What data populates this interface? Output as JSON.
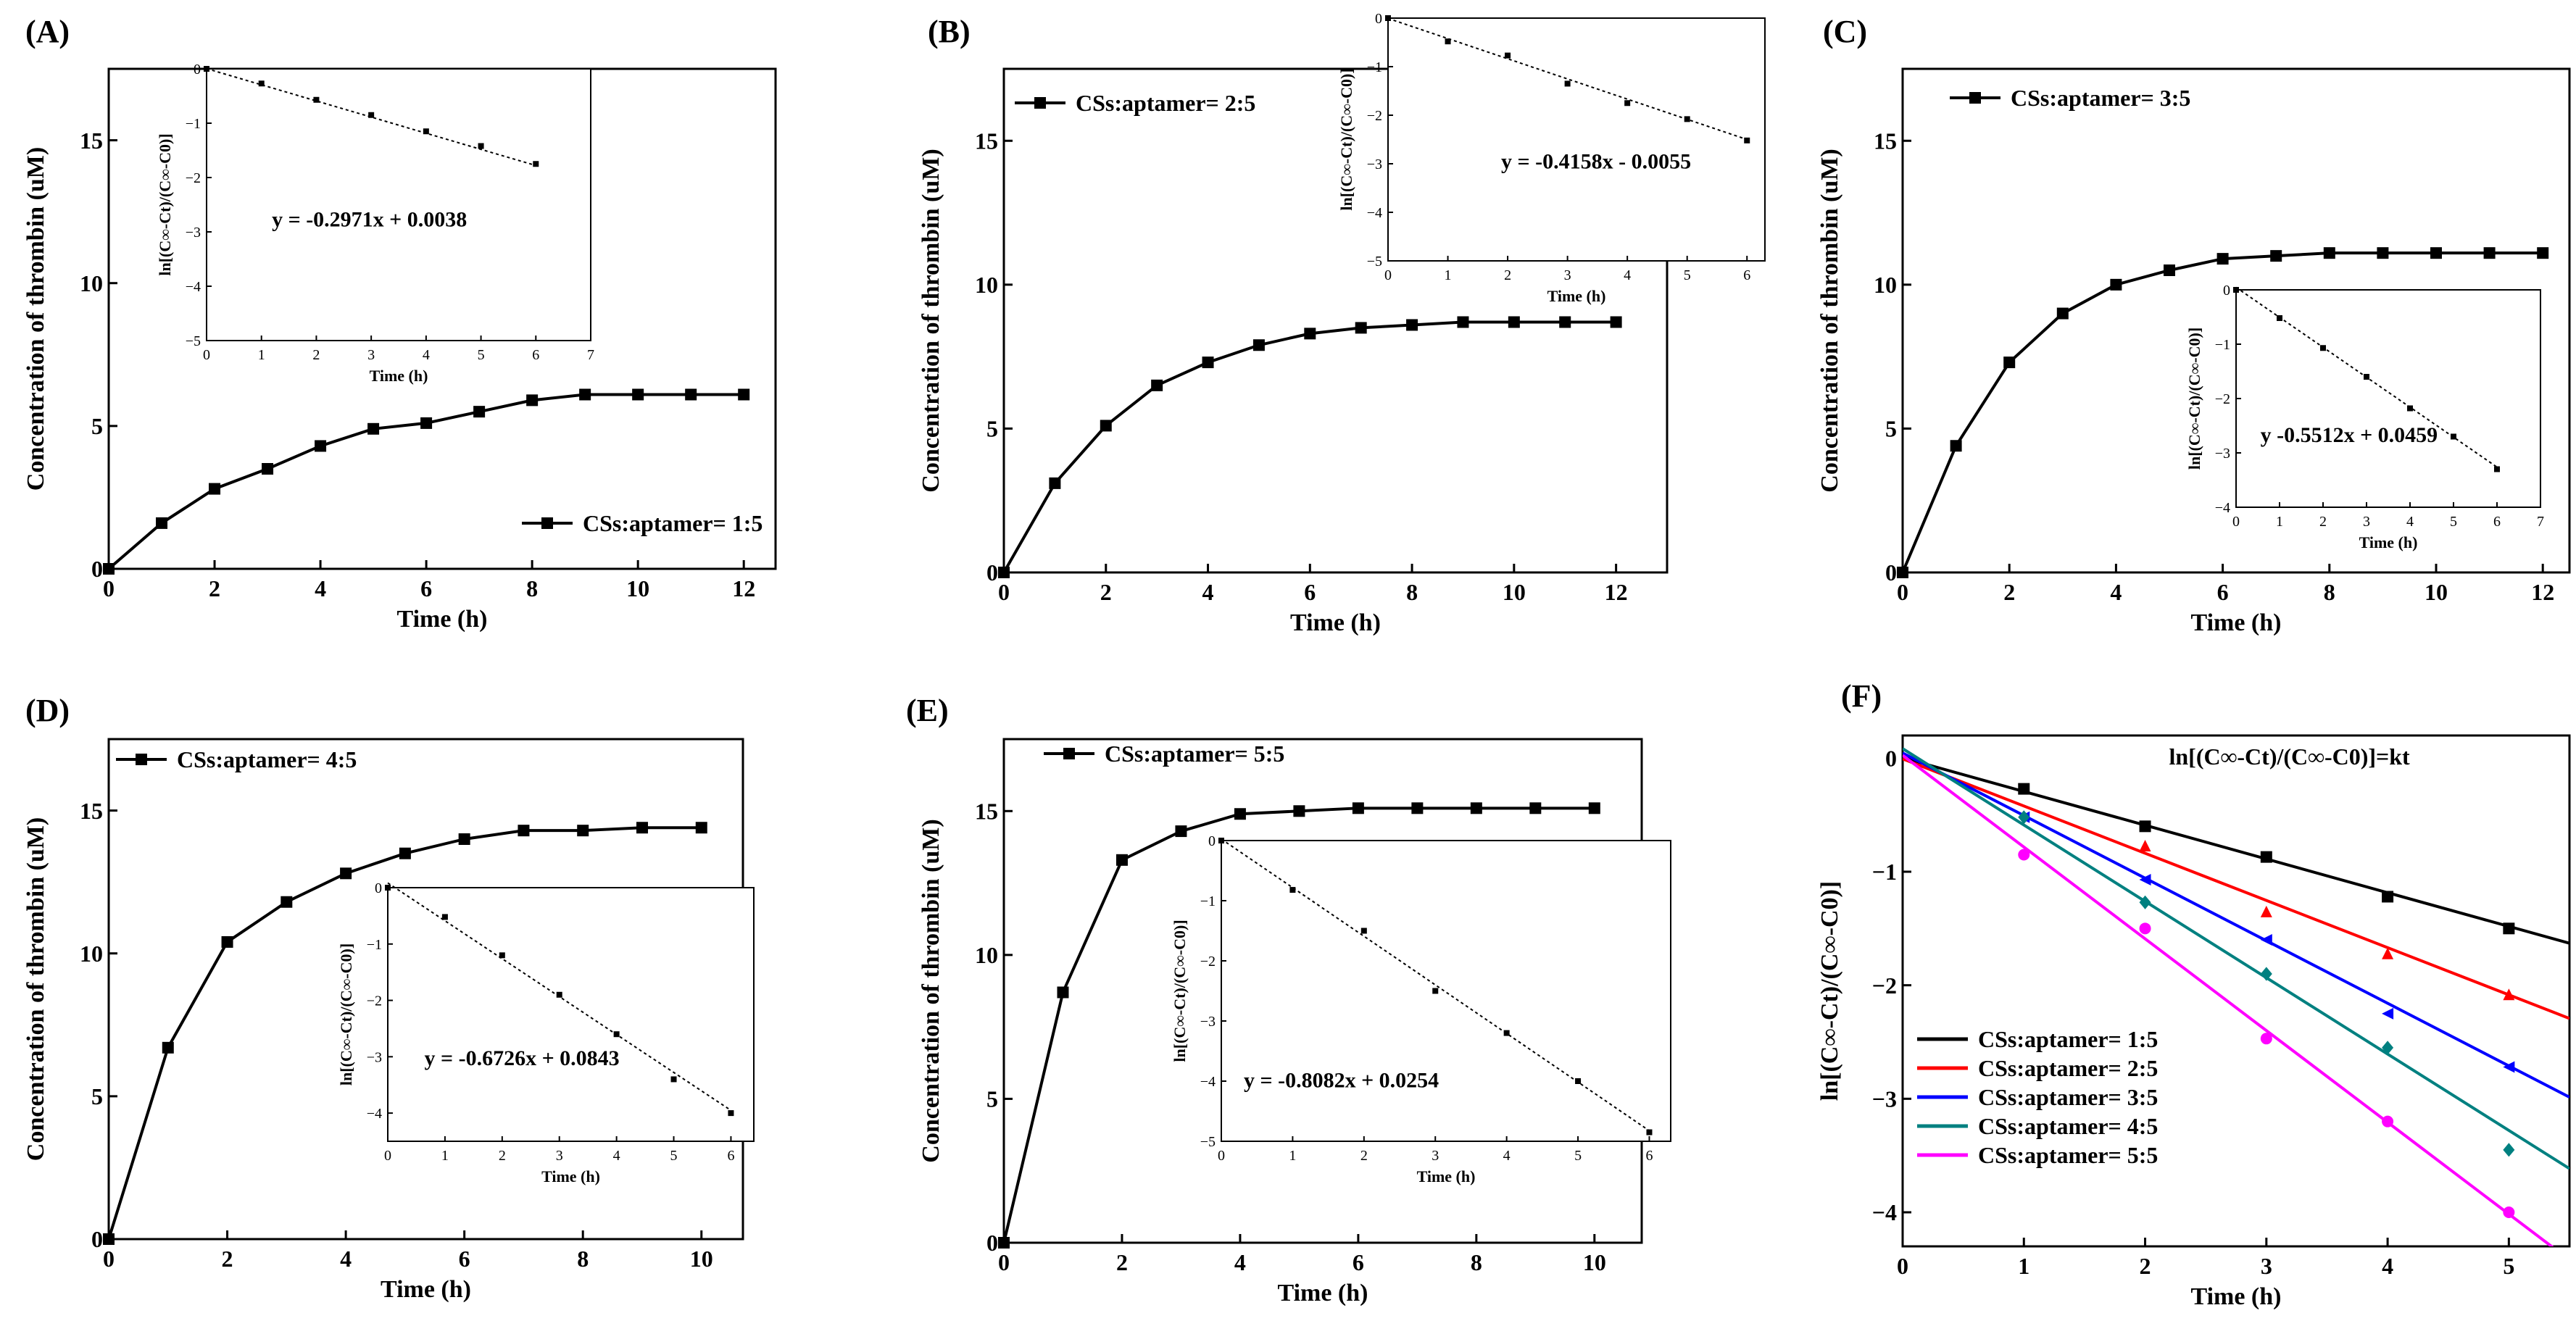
{
  "figure": {
    "panels": [
      {
        "label": "(A)",
        "chart_data": {
          "type": "line",
          "title": "",
          "xlabel": "Time (h)",
          "ylabel": "Concentration of thrombin (uM)",
          "xlim": [
            0,
            12.6
          ],
          "ylim": [
            0,
            17.5
          ],
          "xticks": [
            0,
            2,
            4,
            6,
            8,
            10,
            12
          ],
          "yticks": [
            0,
            5,
            10,
            15
          ],
          "series": [
            {
              "name": "CSs:aptamer= 1:5",
              "color": "#000000",
              "x": [
                0,
                1,
                2,
                3,
                4,
                5,
                6,
                7,
                8,
                9,
                10,
                11,
                12
              ],
              "values": [
                0,
                1.6,
                2.8,
                3.5,
                4.3,
                4.9,
                5.1,
                5.5,
                5.9,
                6.1,
                6.1,
                6.1,
                6.1
              ]
            }
          ],
          "legend": "bottom-right",
          "inset": {
            "type": "scatter",
            "xlabel": "Time (h)",
            "ylabel": "ln[(C∞-Ct)/(C∞-C0)]",
            "xlim": [
              0,
              7
            ],
            "ylim": [
              -5,
              0
            ],
            "xticks": [
              0,
              1,
              2,
              3,
              4,
              5,
              6,
              7
            ],
            "yticks": [
              0,
              -1,
              -2,
              -3,
              -4,
              -5
            ],
            "x": [
              0,
              1,
              2,
              3,
              4,
              5,
              6
            ],
            "values": [
              0,
              -0.27,
              -0.57,
              -0.85,
              -1.15,
              -1.42,
              -1.75
            ],
            "fit_slope": -0.2971,
            "fit_intercept": 0.0038,
            "equation": "y = -0.2971x + 0.0038"
          }
        }
      },
      {
        "label": "(B)",
        "chart_data": {
          "type": "line",
          "title": "",
          "xlabel": "Time (h)",
          "ylabel": "Concentration of thrombin (uM)",
          "xlim": [
            0,
            13
          ],
          "ylim": [
            0,
            17.5
          ],
          "xticks": [
            0,
            2,
            4,
            6,
            8,
            10,
            12
          ],
          "yticks": [
            0,
            5,
            10,
            15
          ],
          "series": [
            {
              "name": "CSs:aptamer= 2:5",
              "color": "#000000",
              "x": [
                0,
                1,
                2,
                3,
                4,
                5,
                6,
                7,
                8,
                9,
                10,
                11,
                12
              ],
              "values": [
                0,
                3.1,
                5.1,
                6.5,
                7.3,
                7.9,
                8.3,
                8.5,
                8.6,
                8.7,
                8.7,
                8.7,
                8.7
              ]
            }
          ],
          "legend": "top-left",
          "inset": {
            "type": "scatter",
            "xlabel": "Time (h)",
            "ylabel": "ln[(C∞-Ct)/(C∞-C0)]",
            "xlim": [
              0,
              6.3
            ],
            "ylim": [
              -5,
              0
            ],
            "xticks": [
              0,
              1,
              2,
              3,
              4,
              5,
              6
            ],
            "yticks": [
              0,
              -1,
              -2,
              -3,
              -4,
              -5
            ],
            "x": [
              0,
              1,
              2,
              3,
              4,
              5,
              6
            ],
            "values": [
              0,
              -0.48,
              -0.77,
              -1.35,
              -1.75,
              -2.08,
              -2.52
            ],
            "fit_slope": -0.4158,
            "fit_intercept": -0.0055,
            "equation": "y = -0.4158x - 0.0055"
          }
        }
      },
      {
        "label": "(C)",
        "chart_data": {
          "type": "line",
          "title": "",
          "xlabel": "Time (h)",
          "ylabel": "Concentration of thrombin (uM)",
          "xlim": [
            0,
            12.5
          ],
          "ylim": [
            0,
            17.5
          ],
          "xticks": [
            0,
            2,
            4,
            6,
            8,
            10,
            12
          ],
          "yticks": [
            0,
            5,
            10,
            15
          ],
          "series": [
            {
              "name": "CSs:aptamer= 3:5",
              "color": "#000000",
              "x": [
                0,
                1,
                2,
                3,
                4,
                5,
                6,
                7,
                8,
                9,
                10,
                11,
                12
              ],
              "values": [
                0,
                4.4,
                7.3,
                9.0,
                10.0,
                10.5,
                10.9,
                11.0,
                11.1,
                11.1,
                11.1,
                11.1,
                11.1
              ]
            }
          ],
          "legend": "top-left",
          "inset": {
            "type": "scatter",
            "xlabel": "Time (h)",
            "ylabel": "ln[(C∞-Ct)/(C∞-C0)]",
            "xlim": [
              0,
              7
            ],
            "ylim": [
              -4,
              0
            ],
            "xticks": [
              0,
              1,
              2,
              3,
              4,
              5,
              6,
              7
            ],
            "yticks": [
              0,
              -1,
              -2,
              -3,
              -4
            ],
            "x": [
              0,
              1,
              2,
              3,
              4,
              5,
              6
            ],
            "values": [
              0,
              -0.52,
              -1.07,
              -1.6,
              -2.18,
              -2.7,
              -3.3
            ],
            "fit_slope": -0.5512,
            "fit_intercept": 0.0459,
            "equation": "y   -0.5512x + 0.0459"
          }
        }
      },
      {
        "label": "(D)",
        "chart_data": {
          "type": "line",
          "title": "",
          "xlabel": "Time (h)",
          "ylabel": "Concentration of thrombin (uM)",
          "xlim": [
            0,
            10.7
          ],
          "ylim": [
            0,
            17.5
          ],
          "xticks": [
            0,
            2,
            4,
            6,
            8,
            10
          ],
          "yticks": [
            0,
            5,
            10,
            15
          ],
          "series": [
            {
              "name": "CSs:aptamer= 4:5",
              "color": "#000000",
              "x": [
                0,
                1,
                2,
                3,
                4,
                5,
                6,
                7,
                8,
                9,
                10
              ],
              "values": [
                0,
                6.7,
                10.4,
                11.8,
                12.8,
                13.5,
                14.0,
                14.3,
                14.3,
                14.4,
                14.4
              ]
            }
          ],
          "legend": "top-left",
          "inset": {
            "type": "scatter",
            "xlabel": "Time (h)",
            "ylabel": "ln[(C∞-Ct)/(C∞-C0)]",
            "xlim": [
              0,
              6.4
            ],
            "ylim": [
              -4.5,
              0
            ],
            "xticks": [
              0,
              1,
              2,
              3,
              4,
              5,
              6
            ],
            "yticks": [
              0,
              -1,
              -2,
              -3,
              -4
            ],
            "x": [
              0,
              1,
              2,
              3,
              4,
              5,
              6
            ],
            "values": [
              0,
              -0.52,
              -1.2,
              -1.9,
              -2.6,
              -3.4,
              -4.0
            ],
            "fit_slope": -0.6726,
            "fit_intercept": 0.0843,
            "equation": "y = -0.6726x + 0.0843"
          }
        }
      },
      {
        "label": "(E)",
        "chart_data": {
          "type": "line",
          "title": "",
          "xlabel": "Time (h)",
          "ylabel": "Concentration of thrombin (uM)",
          "xlim": [
            0,
            10.8
          ],
          "ylim": [
            0,
            17.5
          ],
          "xticks": [
            0,
            2,
            4,
            6,
            8,
            10
          ],
          "yticks": [
            0,
            5,
            10,
            15
          ],
          "series": [
            {
              "name": "CSs:aptamer= 5:5",
              "color": "#000000",
              "x": [
                0,
                1,
                2,
                3,
                4,
                5,
                6,
                7,
                8,
                9,
                10
              ],
              "values": [
                0,
                8.7,
                13.3,
                14.3,
                14.9,
                15.0,
                15.1,
                15.1,
                15.1,
                15.1,
                15.1
              ]
            }
          ],
          "legend": "top-left",
          "inset": {
            "type": "scatter",
            "xlabel": "Time (h)",
            "ylabel": "ln[(C∞-Ct)/(C∞-C0)]",
            "xlim": [
              0,
              6.3
            ],
            "ylim": [
              -5,
              0
            ],
            "xticks": [
              0,
              1,
              2,
              3,
              4,
              5,
              6
            ],
            "yticks": [
              0,
              -1,
              -2,
              -3,
              -4,
              -5
            ],
            "x": [
              0,
              1,
              2,
              3,
              4,
              5,
              6
            ],
            "values": [
              0,
              -0.82,
              -1.5,
              -2.5,
              -3.2,
              -4.0,
              -4.85
            ],
            "fit_slope": -0.8082,
            "fit_intercept": 0.0254,
            "equation": "y = -0.8082x + 0.0254"
          }
        }
      },
      {
        "label": "(F)",
        "chart_data": {
          "type": "scatter",
          "title": "ln[(C∞-Ct)/(C∞-C0)]=kt",
          "xlabel": "Time (h)",
          "ylabel": "ln[(C∞-Ct)/(C∞-C0)]",
          "xlim": [
            0,
            5.5
          ],
          "ylim": [
            -4.3,
            0.2
          ],
          "xticks": [
            0,
            1,
            2,
            3,
            4,
            5
          ],
          "yticks": [
            0,
            -1,
            -2,
            -3,
            -4
          ],
          "legend": "bottom-left",
          "series": [
            {
              "name": "CSs:aptamer= 1:5",
              "color": "#000000",
              "marker": "square",
              "x": [
                1,
                2,
                3,
                4,
                5
              ],
              "values": [
                -0.27,
                -0.6,
                -0.87,
                -1.22,
                -1.5
              ],
              "fit_slope": -0.2971,
              "fit_intercept": 0.0038
            },
            {
              "name": "CSs:aptamer= 2:5",
              "color": "#ff0000",
              "marker": "triangle",
              "x": [
                2,
                3,
                4,
                5
              ],
              "values": [
                -0.77,
                -1.35,
                -1.72,
                -2.08
              ],
              "fit_slope": -0.4158,
              "fit_intercept": -0.0055
            },
            {
              "name": "CSs:aptamer= 3:5",
              "color": "#0000ff",
              "marker": "triangle-left",
              "x": [
                1,
                2,
                3,
                4,
                5
              ],
              "values": [
                -0.52,
                -1.07,
                -1.6,
                -2.25,
                -2.72
              ],
              "fit_slope": -0.5512,
              "fit_intercept": 0.0459
            },
            {
              "name": "CSs:aptamer= 4:5",
              "color": "#008080",
              "marker": "diamond",
              "x": [
                1,
                2,
                3,
                4,
                5
              ],
              "values": [
                -0.52,
                -1.27,
                -1.9,
                -2.55,
                -3.45
              ],
              "fit_slope": -0.6726,
              "fit_intercept": 0.0843
            },
            {
              "name": "CSs:aptamer= 5:5",
              "color": "#ff00ff",
              "marker": "circle",
              "x": [
                1,
                2,
                3,
                4,
                5
              ],
              "values": [
                -0.85,
                -1.5,
                -2.47,
                -3.2,
                -4.0
              ],
              "fit_slope": -0.8082,
              "fit_intercept": 0.0254
            }
          ]
        }
      }
    ]
  }
}
